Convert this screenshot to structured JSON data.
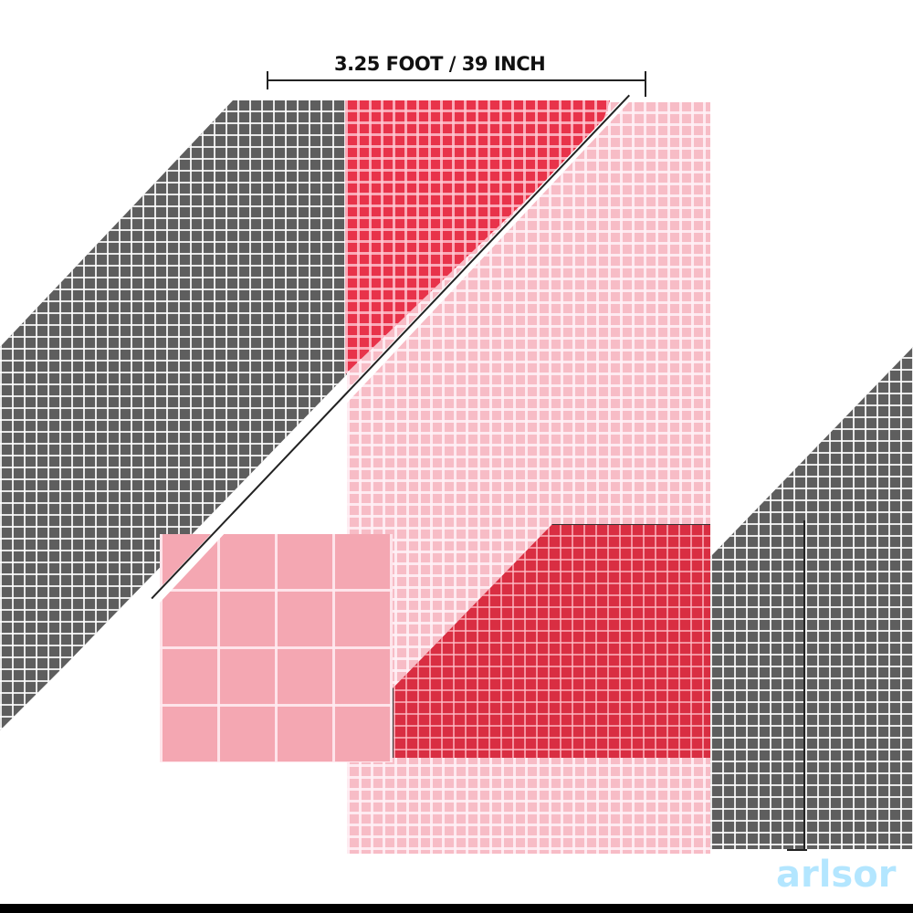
{
  "dimension_width_label": "3.25 FOOT / 39 INCH",
  "watermark": "arlsor",
  "colors": {
    "gray_panel": "#5e5e5e",
    "pink_panel": "#f7bcc6",
    "red_panel": "#e8334a",
    "red_swatch": "#d92e42",
    "pink_swatch": "#f4a7b2",
    "accent_watermark": "#59c8ff"
  }
}
